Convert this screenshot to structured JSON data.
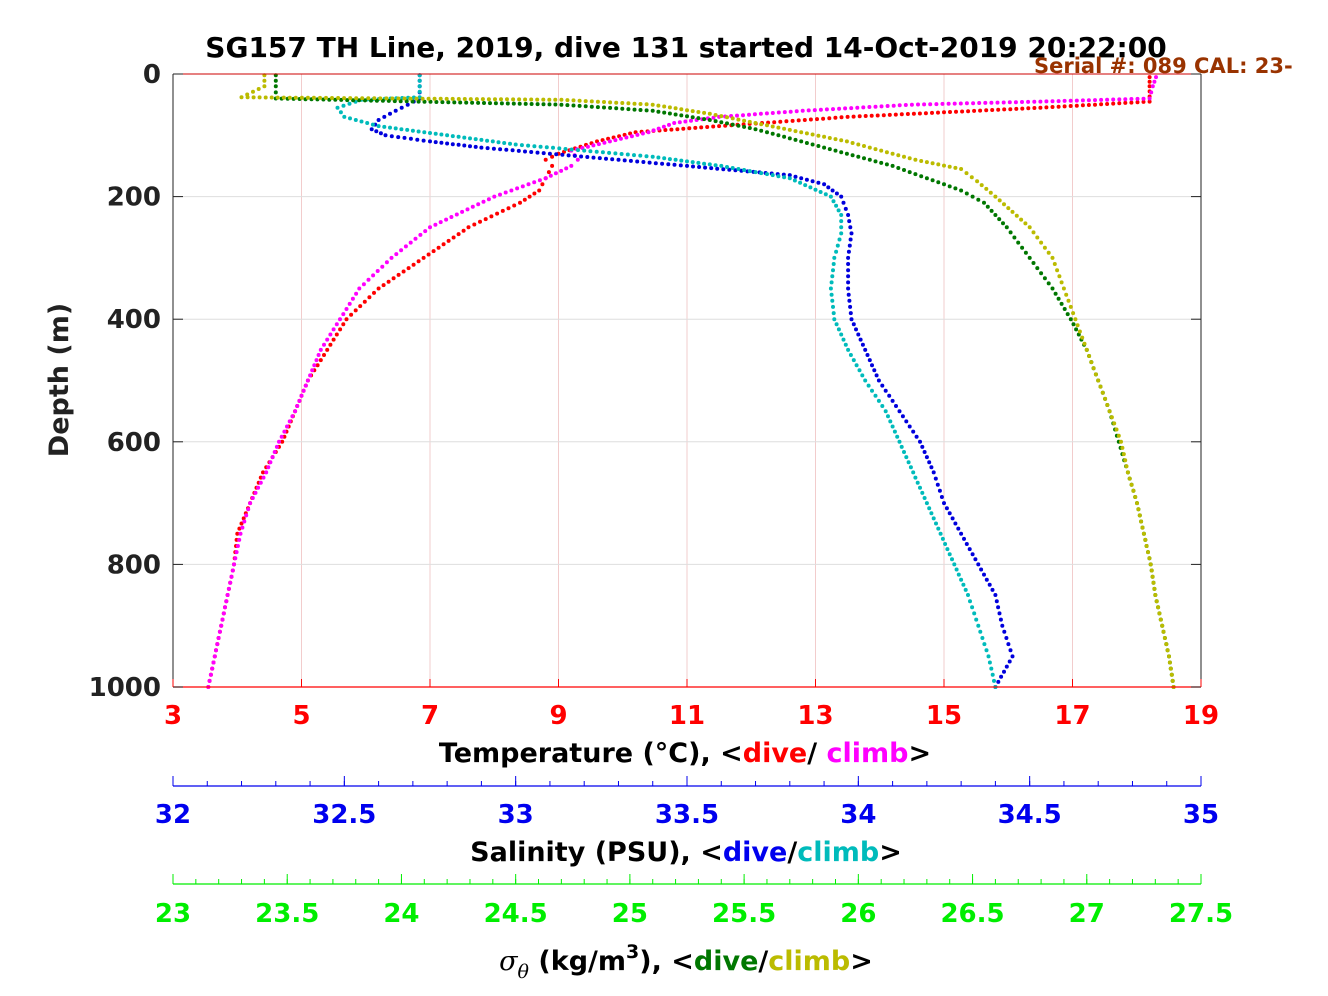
{
  "chart_data": {
    "type": "scatter",
    "title": "SG157 TH Line, 2019, dive 131 started 14-Oct-2019 20:22:00",
    "annotation": "Serial #: 089  CAL: 23-",
    "ylabel": "Depth (m)",
    "ylim": [
      0,
      1000
    ],
    "y_reversed": true,
    "y_ticks": [
      "0",
      "200",
      "400",
      "600",
      "800",
      "1000"
    ],
    "grid": true,
    "axes": {
      "temperature": {
        "label_prefix": "Temperature (°C), <",
        "label_dive": "dive",
        "label_sep": "/ ",
        "label_climb": "climb",
        "label_suffix": ">",
        "range": [
          3,
          19
        ],
        "ticks": [
          "3",
          "5",
          "7",
          "9",
          "11",
          "13",
          "15",
          "17",
          "19"
        ],
        "color": "#ff0000"
      },
      "salinity": {
        "label_prefix": "Salinity (PSU), <",
        "label_dive": "dive",
        "label_sep": "/",
        "label_climb": "climb",
        "label_suffix": ">",
        "range": [
          32,
          35
        ],
        "ticks": [
          "32",
          "32.5",
          "33",
          "33.5",
          "34",
          "34.5",
          "35"
        ],
        "color": "#0000ee"
      },
      "sigma": {
        "label_sym": "σ",
        "label_sub": "θ",
        "label_units": " (kg/m",
        "label_sup": "3",
        "label_rest": "), <",
        "label_dive": "dive",
        "label_sep": "/",
        "label_climb": "climb",
        "label_suffix": ">",
        "range": [
          23,
          27.5
        ],
        "ticks": [
          "23",
          "23.5",
          "24",
          "24.5",
          "25",
          "25.5",
          "26",
          "26.5",
          "27",
          "27.5"
        ],
        "color": "#00ee00"
      }
    },
    "series": [
      {
        "name": "dive",
        "variable": "temperature",
        "color": "#ff0000",
        "depth": [
          5,
          20,
          45,
          55,
          70,
          85,
          95,
          110,
          130,
          140,
          150,
          170,
          190,
          210,
          250,
          300,
          350,
          400,
          450,
          500,
          550,
          600,
          650,
          700,
          750,
          800,
          850,
          900,
          950,
          1000
        ],
        "values": [
          18.2,
          18.2,
          18.2,
          16.5,
          13.5,
          11.5,
          10.2,
          9.6,
          9.0,
          8.8,
          8.9,
          8.8,
          8.7,
          8.4,
          7.6,
          6.9,
          6.2,
          5.7,
          5.4,
          5.1,
          4.9,
          4.7,
          4.4,
          4.2,
          4.0,
          3.95,
          3.85,
          3.75,
          3.65,
          3.55
        ]
      },
      {
        "name": "climb",
        "variable": "temperature",
        "color": "#ff00ff",
        "depth": [
          5,
          20,
          40,
          45,
          50,
          60,
          70,
          80,
          95,
          110,
          125,
          140,
          150,
          170,
          200,
          250,
          300,
          350,
          400,
          450,
          500,
          550,
          600,
          650,
          700,
          750,
          800,
          850,
          900,
          950,
          1000
        ],
        "values": [
          18.3,
          18.25,
          18.2,
          16.5,
          14.5,
          12.8,
          11.5,
          10.8,
          10.4,
          9.8,
          9.2,
          9.3,
          9.2,
          8.8,
          8.0,
          7.0,
          6.4,
          5.9,
          5.6,
          5.3,
          5.1,
          4.9,
          4.65,
          4.45,
          4.2,
          4.05,
          3.95,
          3.85,
          3.75,
          3.65,
          3.55
        ]
      },
      {
        "name": "dive",
        "variable": "salinity",
        "color": "#0000dd",
        "depth": [
          2,
          20,
          40,
          60,
          75,
          90,
          100,
          110,
          120,
          130,
          140,
          150,
          165,
          180,
          200,
          230,
          260,
          300,
          350,
          400,
          450,
          500,
          550,
          600,
          650,
          700,
          750,
          800,
          850,
          900,
          950,
          1000
        ],
        "values": [
          32.72,
          32.72,
          32.72,
          32.65,
          32.6,
          32.58,
          32.62,
          32.75,
          32.9,
          33.1,
          33.3,
          33.5,
          33.8,
          33.9,
          33.95,
          33.97,
          33.98,
          33.97,
          33.97,
          33.98,
          34.02,
          34.06,
          34.12,
          34.18,
          34.22,
          34.25,
          34.3,
          34.35,
          34.4,
          34.42,
          34.45,
          34.4
        ]
      },
      {
        "name": "climb",
        "variable": "salinity",
        "color": "#00bbbb",
        "depth": [
          2,
          20,
          38,
          42,
          55,
          70,
          85,
          100,
          115,
          125,
          135,
          150,
          170,
          200,
          230,
          260,
          300,
          350,
          400,
          450,
          500,
          550,
          600,
          650,
          700,
          750,
          800,
          850,
          900,
          950,
          1000
        ],
        "values": [
          32.72,
          32.72,
          32.72,
          32.55,
          32.48,
          32.5,
          32.6,
          32.8,
          33.0,
          33.2,
          33.4,
          33.6,
          33.8,
          33.92,
          33.95,
          33.95,
          33.93,
          33.92,
          33.93,
          33.97,
          34.02,
          34.08,
          34.12,
          34.16,
          34.2,
          34.24,
          34.28,
          34.32,
          34.35,
          34.38,
          34.4
        ]
      },
      {
        "name": "dive",
        "variable": "sigma",
        "color": "#007700",
        "depth": [
          2,
          20,
          40,
          50,
          60,
          75,
          90,
          105,
          120,
          135,
          150,
          170,
          190,
          210,
          250,
          300,
          350,
          400,
          450,
          500,
          550,
          600,
          650,
          700,
          750,
          800,
          850,
          900,
          950,
          1000
        ],
        "values": [
          23.45,
          23.45,
          23.45,
          24.7,
          25.1,
          25.35,
          25.55,
          25.7,
          25.85,
          26.0,
          26.15,
          26.3,
          26.45,
          26.55,
          26.65,
          26.75,
          26.85,
          26.93,
          27.0,
          27.05,
          27.1,
          27.14,
          27.18,
          27.22,
          27.25,
          27.28,
          27.3,
          27.33,
          27.36,
          27.38
        ]
      },
      {
        "name": "climb",
        "variable": "sigma",
        "color": "#bbbb00",
        "depth": [
          2,
          20,
          38,
          42,
          50,
          65,
          80,
          95,
          110,
          125,
          140,
          155,
          175,
          200,
          250,
          300,
          350,
          400,
          450,
          500,
          550,
          600,
          650,
          700,
          750,
          800,
          850,
          900,
          950,
          1000
        ],
        "values": [
          23.4,
          23.4,
          23.3,
          24.7,
          25.1,
          25.35,
          25.55,
          25.75,
          25.95,
          26.1,
          26.25,
          26.45,
          26.52,
          26.6,
          26.75,
          26.85,
          26.9,
          26.95,
          27.0,
          27.05,
          27.1,
          27.15,
          27.18,
          27.22,
          27.25,
          27.28,
          27.3,
          27.33,
          27.36,
          27.38
        ]
      }
    ]
  }
}
